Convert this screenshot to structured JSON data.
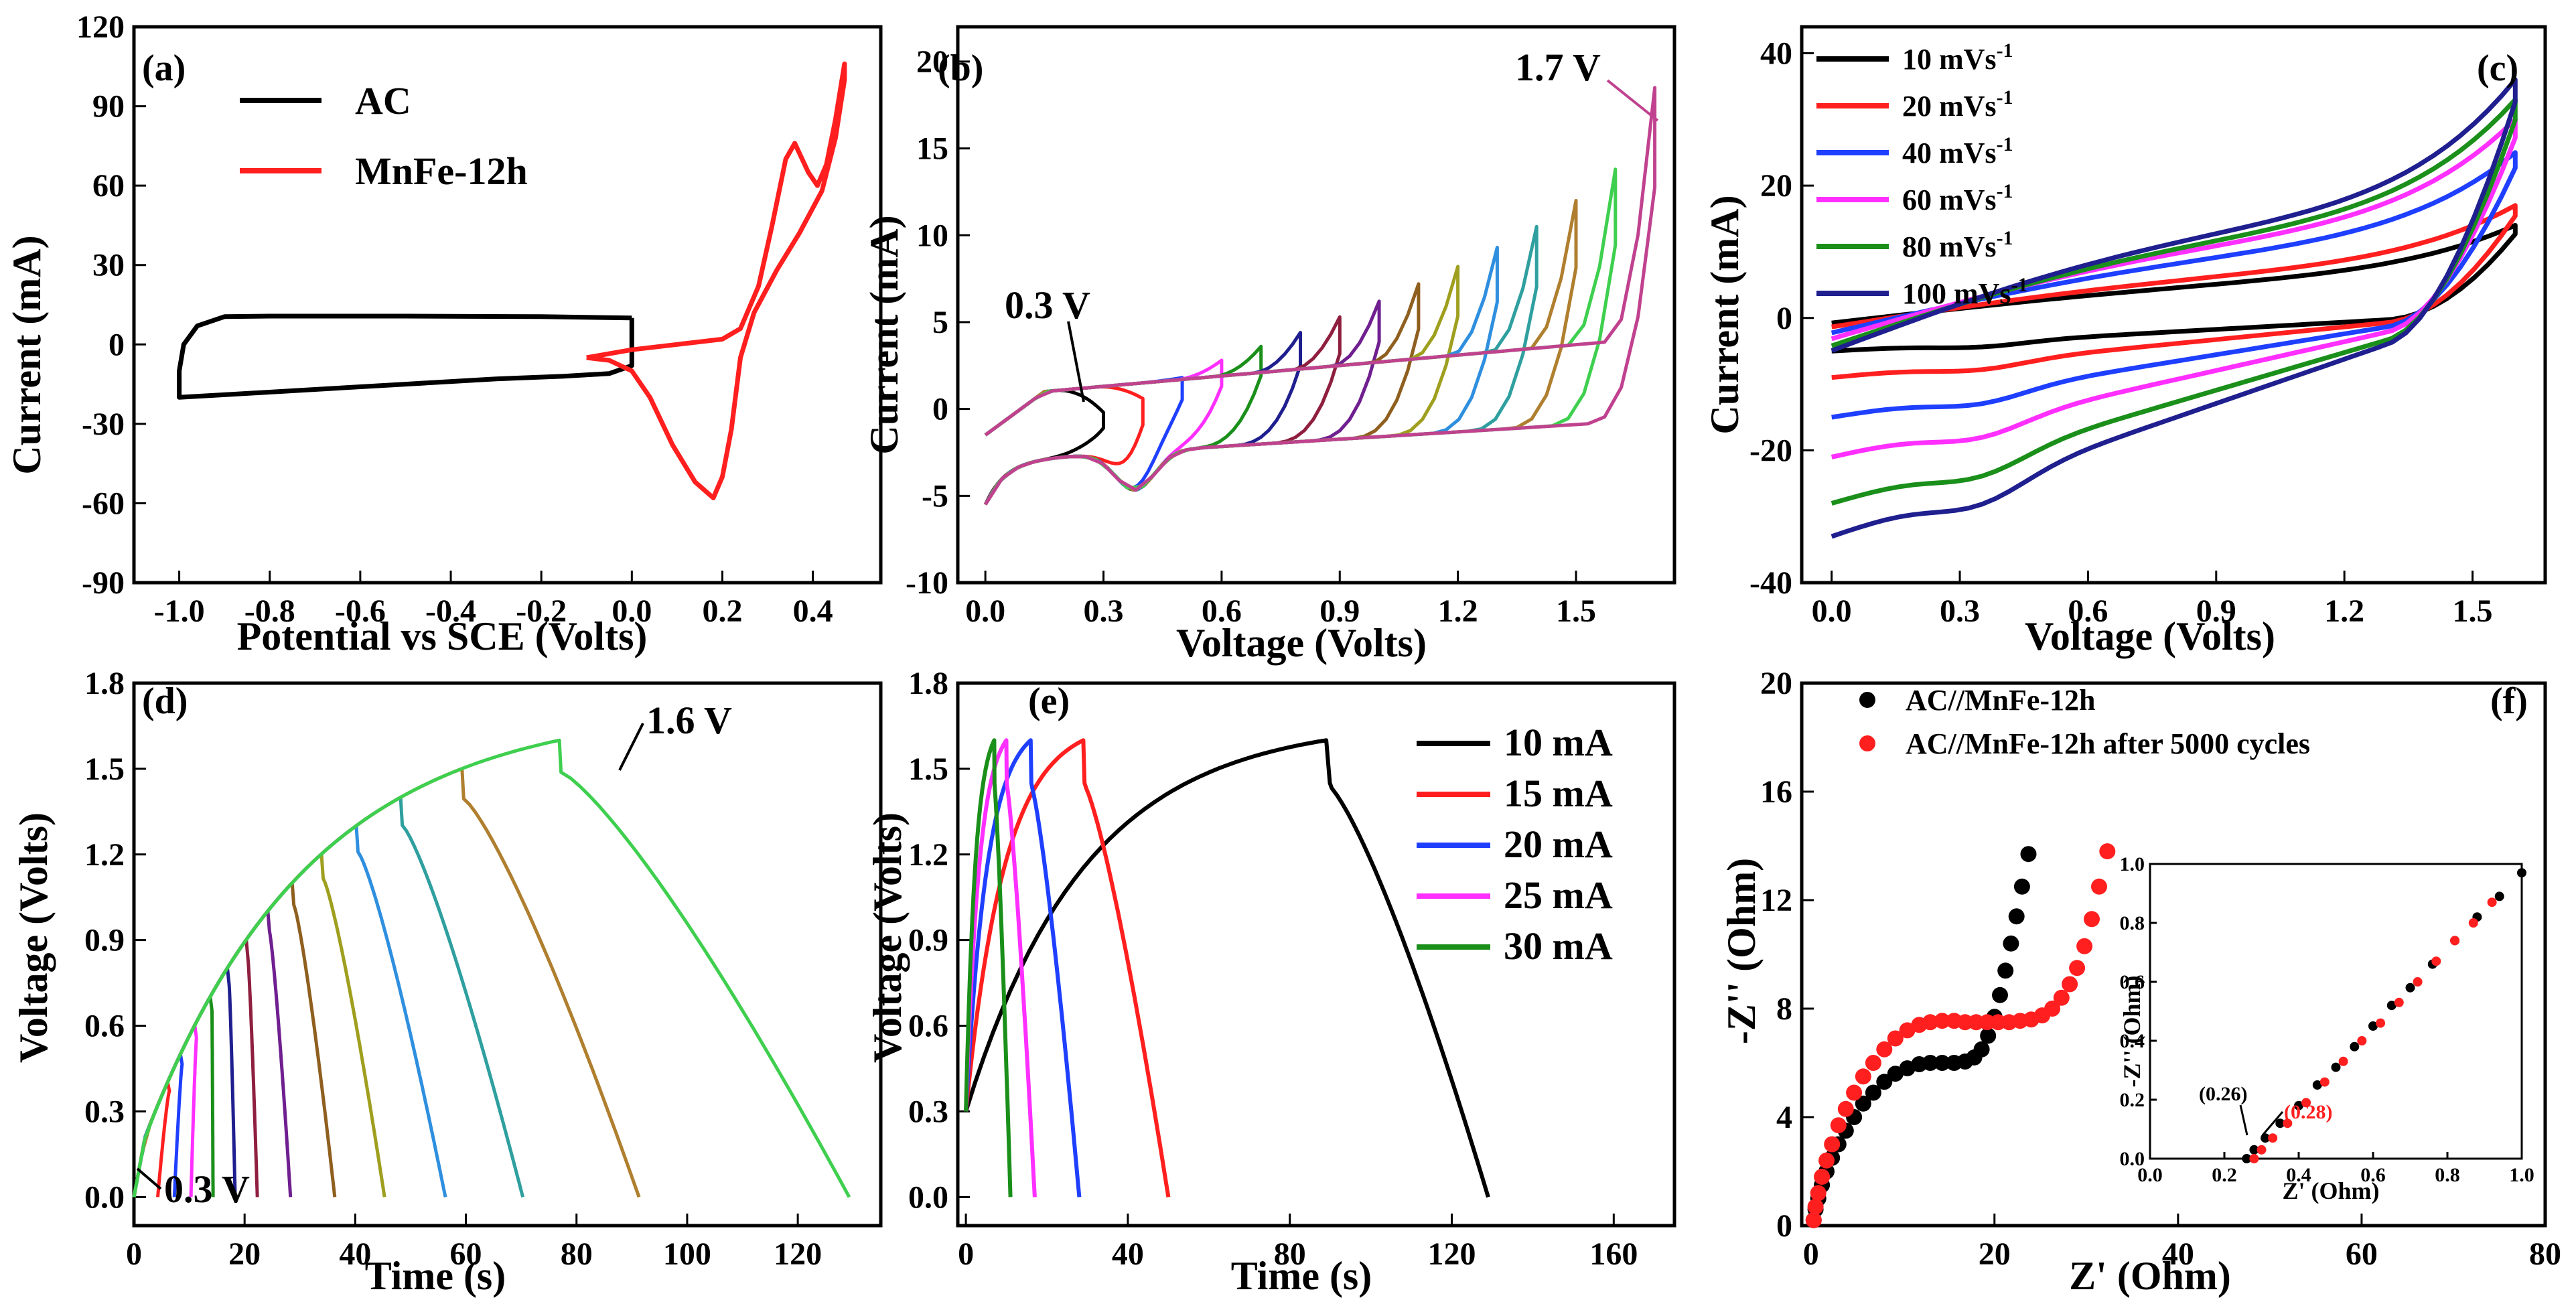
{
  "chart_data": [
    {
      "id": "a",
      "type": "line",
      "panel_label": "(a)",
      "xlabel": "Potential vs SCE (Volts)",
      "ylabel": "Current  (mA)",
      "xlim": [
        -1.1,
        0.55
      ],
      "ylim": [
        -90,
        120
      ],
      "xticks": [
        -1.0,
        -0.8,
        -0.6,
        -0.4,
        -0.2,
        0.0,
        0.2,
        0.4
      ],
      "xtick_labels": [
        "-1.0",
        "-0.8",
        "-0.6",
        "-0.4",
        "-0.2",
        "0.0",
        "0.2",
        "0.4"
      ],
      "yticks": [
        -90,
        -60,
        -30,
        0,
        30,
        60,
        90,
        120
      ],
      "ytick_labels": [
        "-90",
        "-60",
        "-30",
        "0",
        "30",
        "60",
        "90",
        "120"
      ],
      "legend_position": "top-left",
      "series": [
        {
          "name": "AC",
          "color": "#000000",
          "points": [
            [
              0.0,
              10
            ],
            [
              -0.2,
              10.5
            ],
            [
              -0.5,
              10.7
            ],
            [
              -0.8,
              10.7
            ],
            [
              -0.9,
              10.5
            ],
            [
              -0.96,
              7
            ],
            [
              -0.99,
              0
            ],
            [
              -1.0,
              -10
            ],
            [
              -1.0,
              -20
            ],
            [
              -0.9,
              -19
            ],
            [
              -0.7,
              -17
            ],
            [
              -0.5,
              -15
            ],
            [
              -0.3,
              -13
            ],
            [
              -0.15,
              -12
            ],
            [
              -0.05,
              -11
            ],
            [
              0.0,
              -8
            ],
            [
              0.0,
              10
            ]
          ]
        },
        {
          "name": "MnFe-12h",
          "color": "#ff1f1f",
          "points": [
            [
              -0.1,
              -5
            ],
            [
              0.0,
              -2
            ],
            [
              0.1,
              0
            ],
            [
              0.2,
              2
            ],
            [
              0.24,
              6
            ],
            [
              0.28,
              22
            ],
            [
              0.31,
              45
            ],
            [
              0.34,
              70
            ],
            [
              0.36,
              76
            ],
            [
              0.39,
              65
            ],
            [
              0.41,
              60
            ],
            [
              0.43,
              68
            ],
            [
              0.45,
              85
            ],
            [
              0.47,
              106
            ],
            [
              0.47,
              100
            ],
            [
              0.45,
              78
            ],
            [
              0.42,
              58
            ],
            [
              0.37,
              42
            ],
            [
              0.32,
              28
            ],
            [
              0.27,
              12
            ],
            [
              0.24,
              -5
            ],
            [
              0.22,
              -32
            ],
            [
              0.2,
              -50
            ],
            [
              0.18,
              -58
            ],
            [
              0.14,
              -52
            ],
            [
              0.09,
              -38
            ],
            [
              0.04,
              -20
            ],
            [
              0.0,
              -10
            ],
            [
              -0.05,
              -6
            ],
            [
              -0.1,
              -5
            ]
          ]
        }
      ]
    },
    {
      "id": "b",
      "type": "line",
      "panel_label": "(b)",
      "xlabel": "Voltage (Volts)",
      "ylabel": "Current  (mA)",
      "xlim": [
        -0.07,
        1.75
      ],
      "ylim": [
        -10,
        22
      ],
      "xticks": [
        0.0,
        0.3,
        0.6,
        0.9,
        1.2,
        1.5
      ],
      "xtick_labels": [
        "0.0",
        "0.3",
        "0.6",
        "0.9",
        "1.2",
        "1.5"
      ],
      "yticks": [
        -10,
        -5,
        0,
        5,
        10,
        15,
        20
      ],
      "ytick_labels": [
        "-10",
        "-5",
        "0",
        "5",
        "10",
        "15",
        "20"
      ],
      "annotations": [
        {
          "text": "0.3 V",
          "x": 0.3,
          "y": 0.3
        },
        {
          "text": "1.7 V",
          "x": 1.7,
          "y": 18.5
        }
      ],
      "windows": [
        0.3,
        0.4,
        0.5,
        0.6,
        0.7,
        0.8,
        0.9,
        1.0,
        1.1,
        1.2,
        1.3,
        1.4,
        1.5,
        1.6,
        1.7
      ],
      "peak_currents": [
        -0.2,
        0.6,
        1.8,
        2.8,
        3.6,
        4.4,
        5.3,
        6.2,
        7.2,
        8.2,
        9.3,
        10.5,
        12.0,
        13.8,
        18.5
      ],
      "series_colors": [
        "#000000",
        "#ff1f1f",
        "#1f3fff",
        "#ff2fff",
        "#1a8f1a",
        "#1f1f8f",
        "#8f1f3f",
        "#6f1f8f",
        "#8f5f1f",
        "#9f9f1f",
        "#2f8fdf",
        "#2f9f9f",
        "#af7f2f",
        "#3fcf4f",
        "#c0428f"
      ]
    },
    {
      "id": "c",
      "type": "line",
      "panel_label": "(c)",
      "xlabel": "Voltage (Volts)",
      "ylabel": "Current  (mA)",
      "xlim": [
        -0.07,
        1.67
      ],
      "ylim": [
        -40,
        44
      ],
      "xticks": [
        0.0,
        0.3,
        0.6,
        0.9,
        1.2,
        1.5
      ],
      "xtick_labels": [
        "0.0",
        "0.3",
        "0.6",
        "0.9",
        "1.2",
        "1.5"
      ],
      "yticks": [
        -40,
        -20,
        0,
        20,
        40
      ],
      "ytick_labels": [
        "-40",
        "-20",
        "0",
        "20",
        "40"
      ],
      "legend_position": "top-left",
      "series": [
        {
          "name": "10 mVs",
          "sup": "-1",
          "color": "#000000",
          "scale": 0.22,
          "min_i": -5,
          "max_i": 14
        },
        {
          "name": "20 mVs",
          "sup": "-1",
          "color": "#ff1f1f",
          "scale": 0.35,
          "min_i": -9,
          "max_i": 17
        },
        {
          "name": "40 mVs",
          "sup": "-1",
          "color": "#1f3fff",
          "scale": 0.55,
          "min_i": -15,
          "max_i": 25
        },
        {
          "name": "60 mVs",
          "sup": "-1",
          "color": "#ff2fff",
          "scale": 0.72,
          "min_i": -21,
          "max_i": 30
        },
        {
          "name": "80 mVs",
          "sup": "-1",
          "color": "#1a8f1a",
          "scale": 0.86,
          "min_i": -28,
          "max_i": 33
        },
        {
          "name": "100 mVs",
          "sup": "-1",
          "color": "#1f1f8f",
          "scale": 1.0,
          "min_i": -33,
          "max_i": 36
        }
      ]
    },
    {
      "id": "d",
      "type": "line",
      "panel_label": "(d)",
      "xlabel": "Time (s)",
      "ylabel": "Voltage (Volts)",
      "xlim": [
        0,
        135
      ],
      "ylim": [
        -0.1,
        1.8
      ],
      "xticks": [
        0,
        20,
        40,
        60,
        80,
        100,
        120
      ],
      "xtick_labels": [
        "0",
        "20",
        "40",
        "60",
        "80",
        "100",
        "120"
      ],
      "yticks": [
        0.0,
        0.3,
        0.6,
        0.9,
        1.2,
        1.5,
        1.8
      ],
      "ytick_labels": [
        "0.0",
        "0.3",
        "0.6",
        "0.9",
        "1.2",
        "1.5",
        "1.8"
      ],
      "annotations": [
        {
          "text": "1.6 V",
          "x": 89,
          "y": 1.6
        },
        {
          "text": "0.3 V",
          "x": 2,
          "y": 0.0
        }
      ],
      "windows": [
        0.3,
        0.4,
        0.5,
        0.6,
        0.7,
        0.8,
        0.9,
        1.0,
        1.1,
        1.2,
        1.3,
        1.4,
        1.5,
        1.6
      ],
      "end_times": [
        4,
        7,
        10,
        14,
        18,
        22,
        28,
        36,
        45,
        56,
        70,
        91,
        129
      ],
      "series_colors": [
        "#ff1f1f",
        "#1f3fff",
        "#ff2fff",
        "#1a8f1a",
        "#1f1f8f",
        "#8f1f3f",
        "#6f1f8f",
        "#8f5f1f",
        "#9f9f1f",
        "#2f8fdf",
        "#2f9f9f",
        "#af7f2f",
        "#3fcf4f"
      ]
    },
    {
      "id": "e",
      "type": "line",
      "panel_label": "(e)",
      "xlabel": "Time (s)",
      "ylabel": "Voltage (Volts)",
      "xlim": [
        -2,
        175
      ],
      "ylim": [
        -0.1,
        1.8
      ],
      "xticks": [
        0,
        40,
        80,
        120,
        160
      ],
      "xtick_labels": [
        "0",
        "40",
        "80",
        "120",
        "160"
      ],
      "yticks": [
        0.0,
        0.3,
        0.6,
        0.9,
        1.2,
        1.5,
        1.8
      ],
      "ytick_labels": [
        "0.0",
        "0.3",
        "0.6",
        "0.9",
        "1.2",
        "1.5",
        "1.8"
      ],
      "legend_position": "top-right",
      "series": [
        {
          "name": "10 mA",
          "color": "#000000",
          "t_charge": 89,
          "t_end": 129
        },
        {
          "name": "15 mA",
          "color": "#ff1f1f",
          "t_charge": 29,
          "t_end": 50
        },
        {
          "name": "20 mA",
          "color": "#1f3fff",
          "t_charge": 16,
          "t_end": 28
        },
        {
          "name": "25 mA",
          "color": "#ff2fff",
          "t_charge": 10,
          "t_end": 17
        },
        {
          "name": "30 mA",
          "color": "#1a8f1a",
          "t_charge": 7,
          "t_end": 11
        }
      ]
    },
    {
      "id": "f",
      "type": "scatter",
      "panel_label": "(f)",
      "xlabel": "Z' (Ohm)",
      "ylabel": "-Z'' (Ohm)",
      "xlim": [
        -1,
        80
      ],
      "ylim": [
        0,
        20
      ],
      "xticks": [
        0,
        20,
        40,
        60,
        80
      ],
      "xtick_labels": [
        "0",
        "20",
        "40",
        "60",
        "80"
      ],
      "yticks": [
        0,
        4,
        8,
        12,
        16,
        20
      ],
      "ytick_labels": [
        "0",
        "4",
        "8",
        "12",
        "16",
        "20"
      ],
      "legend_position": "top-left",
      "series": [
        {
          "name": "AC//MnFe-12h",
          "color": "#000000",
          "points": [
            [
              0.3,
              0.2
            ],
            [
              0.5,
              0.6
            ],
            [
              0.8,
              1.0
            ],
            [
              1.2,
              1.5
            ],
            [
              1.7,
              2.0
            ],
            [
              2.3,
              2.5
            ],
            [
              3.0,
              3.0
            ],
            [
              3.8,
              3.5
            ],
            [
              4.7,
              4.0
            ],
            [
              5.7,
              4.5
            ],
            [
              6.8,
              4.9
            ],
            [
              8.0,
              5.3
            ],
            [
              9.2,
              5.6
            ],
            [
              10.5,
              5.8
            ],
            [
              11.8,
              5.95
            ],
            [
              13.0,
              6.0
            ],
            [
              14.3,
              6.0
            ],
            [
              15.6,
              6.0
            ],
            [
              16.8,
              6.05
            ],
            [
              17.8,
              6.2
            ],
            [
              18.6,
              6.5
            ],
            [
              19.3,
              7.0
            ],
            [
              20.0,
              7.7
            ],
            [
              20.6,
              8.5
            ],
            [
              21.2,
              9.4
            ],
            [
              21.8,
              10.4
            ],
            [
              22.4,
              11.4
            ],
            [
              23.0,
              12.5
            ],
            [
              23.7,
              13.7
            ]
          ]
        },
        {
          "name": "AC//MnFe-12h after 5000 cycles",
          "color": "#ff1f1f",
          "points": [
            [
              0.3,
              0.2
            ],
            [
              0.5,
              0.7
            ],
            [
              0.8,
              1.2
            ],
            [
              1.2,
              1.8
            ],
            [
              1.7,
              2.4
            ],
            [
              2.3,
              3.0
            ],
            [
              3.0,
              3.7
            ],
            [
              3.8,
              4.3
            ],
            [
              4.7,
              4.9
            ],
            [
              5.7,
              5.5
            ],
            [
              6.8,
              6.0
            ],
            [
              8.0,
              6.5
            ],
            [
              9.2,
              6.9
            ],
            [
              10.5,
              7.2
            ],
            [
              11.8,
              7.4
            ],
            [
              13.0,
              7.5
            ],
            [
              14.3,
              7.55
            ],
            [
              15.6,
              7.55
            ],
            [
              16.8,
              7.5
            ],
            [
              18.0,
              7.5
            ],
            [
              19.2,
              7.5
            ],
            [
              20.4,
              7.5
            ],
            [
              21.6,
              7.5
            ],
            [
              22.8,
              7.55
            ],
            [
              24.0,
              7.6
            ],
            [
              25.2,
              7.75
            ],
            [
              26.3,
              8.0
            ],
            [
              27.3,
              8.4
            ],
            [
              28.2,
              8.9
            ],
            [
              29.0,
              9.5
            ],
            [
              29.8,
              10.3
            ],
            [
              30.6,
              11.3
            ],
            [
              31.4,
              12.5
            ],
            [
              32.3,
              13.8
            ]
          ]
        }
      ],
      "inset": {
        "xlabel": "Z' (Ohm)",
        "ylabel": "-Z'' (Ohm)",
        "xlim": [
          0,
          1.0
        ],
        "ylim": [
          0,
          1.0
        ],
        "xticks": [
          0.0,
          0.2,
          0.4,
          0.6,
          0.8,
          1.0
        ],
        "xtick_labels": [
          "0.0",
          "0.2",
          "0.4",
          "0.6",
          "0.8",
          "1.0"
        ],
        "yticks": [
          0.0,
          0.2,
          0.4,
          0.6,
          0.8,
          1.0
        ],
        "ytick_labels": [
          "0.0",
          "0.2",
          "0.4",
          "0.6",
          "0.8",
          "1.0"
        ],
        "annotations": [
          {
            "text": "(0.26)",
            "x": 0.26,
            "y": 0.0,
            "color": "#000000"
          },
          {
            "text": "(0.28)",
            "x": 0.28,
            "y": 0.0,
            "color": "#ff1f1f"
          }
        ],
        "black_points": [
          [
            0.26,
            0.0
          ],
          [
            0.28,
            0.03
          ],
          [
            0.31,
            0.07
          ],
          [
            0.35,
            0.12
          ],
          [
            0.4,
            0.18
          ],
          [
            0.45,
            0.25
          ],
          [
            0.5,
            0.31
          ],
          [
            0.55,
            0.38
          ],
          [
            0.6,
            0.45
          ],
          [
            0.65,
            0.52
          ],
          [
            0.7,
            0.58
          ],
          [
            0.76,
            0.66
          ],
          [
            0.82,
            0.74
          ],
          [
            0.88,
            0.82
          ],
          [
            0.94,
            0.89
          ],
          [
            1.0,
            0.97
          ]
        ],
        "red_points": [
          [
            0.28,
            0.0
          ],
          [
            0.3,
            0.03
          ],
          [
            0.33,
            0.07
          ],
          [
            0.37,
            0.12
          ],
          [
            0.42,
            0.19
          ],
          [
            0.47,
            0.26
          ],
          [
            0.52,
            0.33
          ],
          [
            0.57,
            0.4
          ],
          [
            0.62,
            0.46
          ],
          [
            0.67,
            0.53
          ],
          [
            0.72,
            0.6
          ],
          [
            0.77,
            0.67
          ],
          [
            0.82,
            0.74
          ],
          [
            0.87,
            0.8
          ],
          [
            0.92,
            0.87
          ]
        ]
      }
    }
  ]
}
